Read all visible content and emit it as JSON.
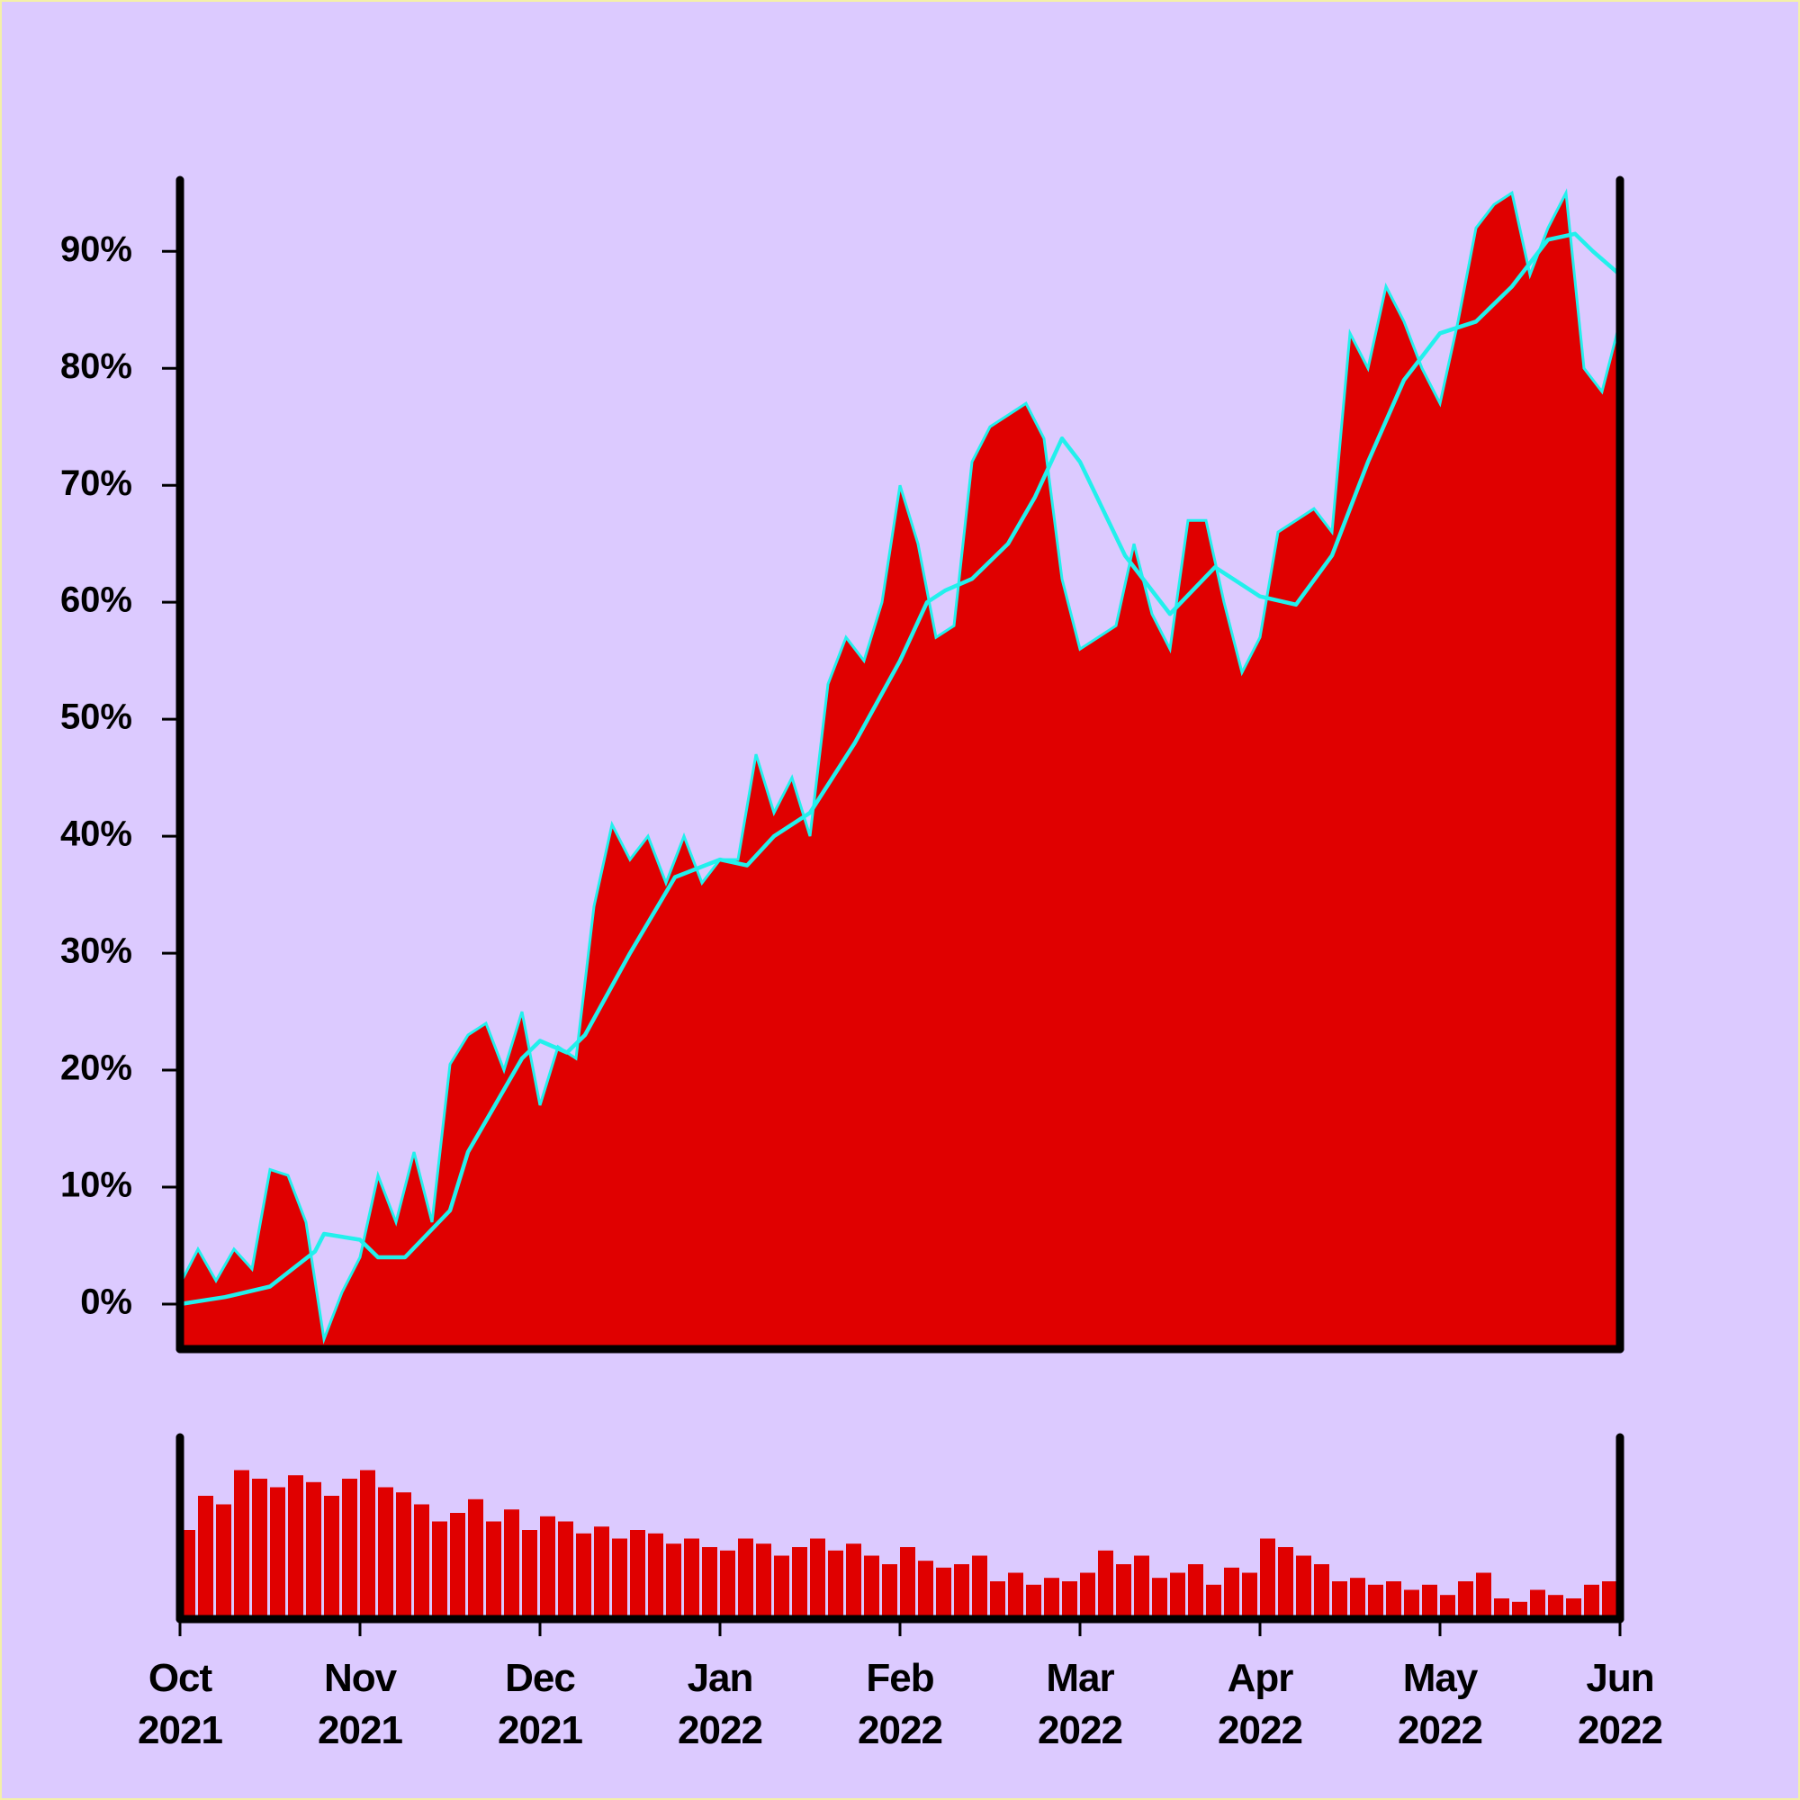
{
  "chart_data": [
    {
      "type": "area",
      "x": [
        0,
        0.1,
        0.2,
        0.3,
        0.4,
        0.5,
        0.6,
        0.7,
        0.8,
        0.9,
        1,
        1.1,
        1.2,
        1.3,
        1.4,
        1.5,
        1.6,
        1.7,
        1.8,
        1.9,
        2,
        2.1,
        2.2,
        2.3,
        2.4,
        2.5,
        2.6,
        2.7,
        2.8,
        2.9,
        3,
        3.1,
        3.2,
        3.3,
        3.4,
        3.5,
        3.6,
        3.7,
        3.8,
        3.9,
        4,
        4.1,
        4.2,
        4.3,
        4.4,
        4.5,
        4.6,
        4.7,
        4.8,
        4.9,
        5,
        5.1,
        5.2,
        5.3,
        5.4,
        5.5,
        5.6,
        5.7,
        5.8,
        5.9,
        6,
        6.1,
        6.2,
        6.3,
        6.4,
        6.5,
        6.6,
        6.7,
        6.8,
        6.9,
        7,
        7.1,
        7.2,
        7.3,
        7.4,
        7.5,
        7.6,
        7.7,
        7.8,
        7.9,
        8
      ],
      "series": [
        {
          "color": "#e00000",
          "line_color": "#22f0ec",
          "values": [
            1.7,
            4.7,
            2,
            4.7,
            3,
            11.5,
            11,
            7,
            -3,
            1,
            4,
            11,
            7,
            13,
            7,
            20.5,
            23,
            24,
            20,
            25,
            17,
            22,
            21,
            34,
            41,
            38,
            40,
            36,
            40,
            36,
            38,
            38,
            47,
            42,
            45,
            40,
            53,
            57,
            55,
            60,
            70,
            65,
            57,
            58,
            72,
            75,
            76,
            77,
            74,
            62,
            56,
            57,
            58,
            65,
            59,
            56,
            67,
            67,
            60,
            54,
            57,
            66,
            67,
            68,
            66,
            83,
            80,
            87,
            84,
            80,
            77,
            84,
            92,
            94,
            95,
            88,
            92,
            95,
            80,
            78,
            84
          ]
        },
        {
          "color": "#22f0ec",
          "x": [
            0,
            0.25,
            0.5,
            0.75,
            0.8,
            1,
            1.1,
            1.25,
            1.5,
            1.6,
            1.75,
            1.9,
            2,
            2.15,
            2.25,
            2.5,
            2.75,
            3,
            3.15,
            3.3,
            3.5,
            3.75,
            4,
            4.15,
            4.25,
            4.4,
            4.6,
            4.75,
            4.9,
            5,
            5.25,
            5.5,
            5.75,
            6,
            6.2,
            6.4,
            6.6,
            6.8,
            7,
            7.2,
            7.4,
            7.5,
            7.6,
            7.75,
            7.85,
            8
          ],
          "values": [
            0,
            0.6,
            1.5,
            4.5,
            6,
            5.5,
            4,
            4,
            8,
            13,
            17,
            21,
            22.5,
            21.5,
            23,
            30,
            36.5,
            38,
            37.5,
            40,
            42,
            48,
            55,
            60,
            61,
            62,
            65,
            69,
            74,
            72,
            64,
            59,
            63,
            60.5,
            59.8,
            64,
            72,
            79,
            83,
            84,
            87,
            89,
            91,
            91.5,
            90,
            88
          ]
        }
      ],
      "xlim": [
        0,
        8
      ],
      "ylim": [
        -3.85,
        96.1
      ],
      "yticks": [
        {
          "value": 0,
          "label": "0%"
        },
        {
          "value": 10,
          "label": "10%"
        },
        {
          "value": 20,
          "label": "20%"
        },
        {
          "value": 30,
          "label": "30%"
        },
        {
          "value": 40,
          "label": "40%"
        },
        {
          "value": 50,
          "label": "50%"
        },
        {
          "value": 60,
          "label": "60%"
        },
        {
          "value": 70,
          "label": "70%"
        },
        {
          "value": 80,
          "label": "80%"
        },
        {
          "value": 90,
          "label": "90%"
        }
      ]
    },
    {
      "type": "bar",
      "color": "#e00000",
      "x": [
        0,
        0.1,
        0.2,
        0.3,
        0.4,
        0.5,
        0.6,
        0.7,
        0.8,
        0.9,
        1,
        1.1,
        1.2,
        1.3,
        1.4,
        1.5,
        1.6,
        1.7,
        1.8,
        1.9,
        2,
        2.1,
        2.2,
        2.3,
        2.4,
        2.5,
        2.6,
        2.7,
        2.8,
        2.9,
        3,
        3.1,
        3.2,
        3.3,
        3.4,
        3.5,
        3.6,
        3.7,
        3.8,
        3.9,
        4,
        4.1,
        4.2,
        4.3,
        4.4,
        4.5,
        4.6,
        4.7,
        4.8,
        4.9,
        5,
        5.1,
        5.2,
        5.3,
        5.4,
        5.5,
        5.6,
        5.7,
        5.8,
        5.9,
        6,
        6.1,
        6.2,
        6.3,
        6.4,
        6.5,
        6.6,
        6.7,
        6.8,
        6.9,
        7,
        7.1,
        7.2,
        7.3,
        7.4,
        7.5,
        7.6,
        7.7,
        7.8,
        7.9
      ],
      "values": [
        50,
        70,
        65,
        85,
        80,
        75,
        82,
        78,
        70,
        80,
        85,
        75,
        72,
        65,
        55,
        60,
        68,
        55,
        62,
        50,
        58,
        55,
        48,
        52,
        45,
        50,
        48,
        42,
        45,
        40,
        38,
        45,
        42,
        35,
        40,
        45,
        38,
        42,
        35,
        30,
        40,
        32,
        28,
        30,
        35,
        20,
        25,
        18,
        22,
        20,
        25,
        38,
        30,
        35,
        22,
        25,
        30,
        18,
        28,
        25,
        45,
        40,
        35,
        30,
        20,
        22,
        18,
        20,
        15,
        18,
        12,
        20,
        25,
        10,
        8,
        15,
        12,
        10,
        18,
        20
      ],
      "xlim": [
        0,
        8
      ],
      "ylim": [
        0,
        100
      ],
      "xticks": [
        {
          "value": 0,
          "label": "Oct 2021"
        },
        {
          "value": 1,
          "label": "Nov 2021"
        },
        {
          "value": 2,
          "label": "Dec 2021"
        },
        {
          "value": 3,
          "label": "Jan 2022"
        },
        {
          "value": 4,
          "label": "Feb 2022"
        },
        {
          "value": 5,
          "label": "Mar 2022"
        },
        {
          "value": 6,
          "label": "Apr 2022"
        },
        {
          "value": 7,
          "label": "May 2022"
        },
        {
          "value": 8,
          "label": "Jun 2022"
        }
      ]
    }
  ]
}
